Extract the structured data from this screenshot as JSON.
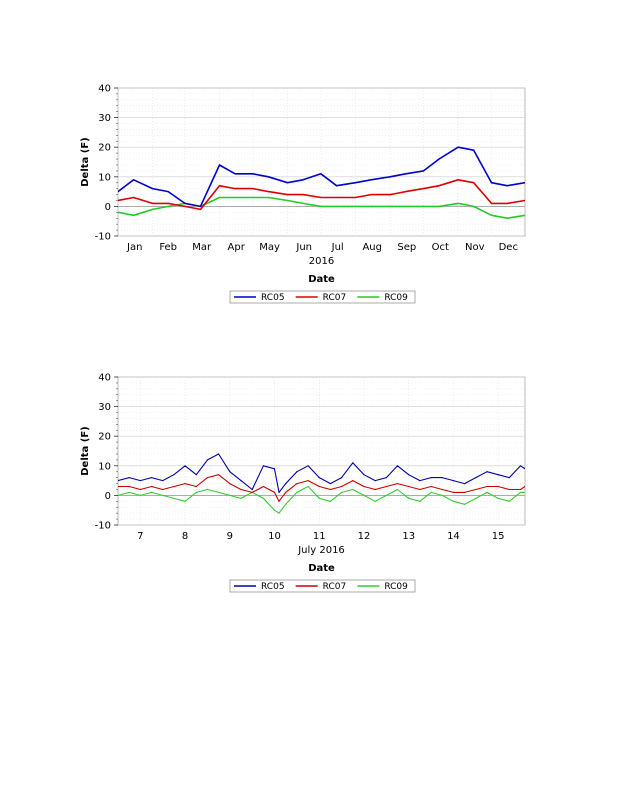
{
  "chart_data": [
    {
      "type": "line",
      "ylabel": "Delta (F)",
      "xlabel": "Date",
      "x_sublabel": "2016",
      "ylim": [
        -10,
        40
      ],
      "yticks": [
        "40",
        "30",
        "20",
        "10",
        "0",
        "-10"
      ],
      "xlim": [
        "2016-01-01",
        "2016-12-31"
      ],
      "xticks": [
        "Jan",
        "Feb",
        "Mar",
        "Apr",
        "May",
        "Jun",
        "Jul",
        "Aug",
        "Sep",
        "Oct",
        "Nov",
        "Dec"
      ],
      "grid": true,
      "legend_position": "bottom",
      "series": [
        {
          "name": "RC05",
          "color": "#0000cc",
          "x": [
            "2016-01-01",
            "2016-01-15",
            "2016-02-01",
            "2016-02-15",
            "2016-03-01",
            "2016-03-15",
            "2016-04-01",
            "2016-04-15",
            "2016-05-01",
            "2016-05-15",
            "2016-06-01",
            "2016-06-15",
            "2016-07-01",
            "2016-07-15",
            "2016-08-01",
            "2016-08-15",
            "2016-09-01",
            "2016-09-15",
            "2016-10-01",
            "2016-10-15",
            "2016-11-01",
            "2016-11-15",
            "2016-12-01",
            "2016-12-15",
            "2016-12-31"
          ],
          "y": [
            5,
            9,
            6,
            5,
            1,
            0,
            14,
            11,
            11,
            10,
            8,
            9,
            11,
            7,
            8,
            9,
            10,
            11,
            12,
            16,
            20,
            19,
            8,
            7,
            8
          ]
        },
        {
          "name": "RC07",
          "color": "#dd0000",
          "x": [
            "2016-01-01",
            "2016-01-15",
            "2016-02-01",
            "2016-02-15",
            "2016-03-01",
            "2016-03-15",
            "2016-04-01",
            "2016-04-15",
            "2016-05-01",
            "2016-05-15",
            "2016-06-01",
            "2016-06-15",
            "2016-07-01",
            "2016-07-15",
            "2016-08-01",
            "2016-08-15",
            "2016-09-01",
            "2016-09-15",
            "2016-10-01",
            "2016-10-15",
            "2016-11-01",
            "2016-11-15",
            "2016-12-01",
            "2016-12-15",
            "2016-12-31"
          ],
          "y": [
            2,
            3,
            1,
            1,
            0,
            -1,
            7,
            6,
            6,
            5,
            4,
            4,
            3,
            3,
            3,
            4,
            4,
            5,
            6,
            7,
            9,
            8,
            1,
            1,
            2
          ]
        },
        {
          "name": "RC09",
          "color": "#22cc22",
          "x": [
            "2016-01-01",
            "2016-01-15",
            "2016-02-01",
            "2016-02-15",
            "2016-03-01",
            "2016-03-15",
            "2016-04-01",
            "2016-04-15",
            "2016-05-01",
            "2016-05-15",
            "2016-06-01",
            "2016-06-15",
            "2016-07-01",
            "2016-07-15",
            "2016-08-01",
            "2016-08-15",
            "2016-09-01",
            "2016-09-15",
            "2016-10-01",
            "2016-10-15",
            "2016-11-01",
            "2016-11-15",
            "2016-12-01",
            "2016-12-15",
            "2016-12-31"
          ],
          "y": [
            -2,
            -3,
            -1,
            0,
            1,
            0,
            3,
            3,
            3,
            3,
            2,
            1,
            0,
            0,
            0,
            0,
            0,
            0,
            0,
            0,
            1,
            0,
            -3,
            -4,
            -3
          ]
        }
      ]
    },
    {
      "type": "line",
      "ylabel": "Delta (F)",
      "xlabel": "Date",
      "x_sublabel": "July 2016",
      "ylim": [
        -10,
        40
      ],
      "yticks": [
        "40",
        "30",
        "20",
        "10",
        "0",
        "-10"
      ],
      "xlim": [
        6.5,
        15.6
      ],
      "xticks": [
        "7",
        "8",
        "9",
        "10",
        "11",
        "12",
        "13",
        "14",
        "15"
      ],
      "grid": true,
      "legend_position": "bottom",
      "series": [
        {
          "name": "RC05",
          "color": "#0000aa",
          "x": [
            6.5,
            6.75,
            7.0,
            7.25,
            7.5,
            7.75,
            8.0,
            8.25,
            8.5,
            8.75,
            9.0,
            9.25,
            9.5,
            9.75,
            10.0,
            10.1,
            10.25,
            10.5,
            10.75,
            11.0,
            11.25,
            11.5,
            11.75,
            12.0,
            12.25,
            12.5,
            12.75,
            13.0,
            13.25,
            13.5,
            13.75,
            14.0,
            14.25,
            14.5,
            14.75,
            15.0,
            15.25,
            15.5,
            15.6
          ],
          "y": [
            5,
            6,
            5,
            6,
            5,
            7,
            10,
            7,
            12,
            14,
            8,
            5,
            2,
            10,
            9,
            1,
            4,
            8,
            10,
            6,
            4,
            6,
            11,
            7,
            5,
            6,
            10,
            7,
            5,
            6,
            6,
            5,
            4,
            6,
            8,
            7,
            6,
            10,
            9
          ]
        },
        {
          "name": "RC07",
          "color": "#cc0000",
          "x": [
            6.5,
            6.75,
            7.0,
            7.25,
            7.5,
            7.75,
            8.0,
            8.25,
            8.5,
            8.75,
            9.0,
            9.25,
            9.5,
            9.75,
            10.0,
            10.1,
            10.25,
            10.5,
            10.75,
            11.0,
            11.25,
            11.5,
            11.75,
            12.0,
            12.25,
            12.5,
            12.75,
            13.0,
            13.25,
            13.5,
            13.75,
            14.0,
            14.25,
            14.5,
            14.75,
            15.0,
            15.25,
            15.5,
            15.6
          ],
          "y": [
            3,
            3,
            2,
            3,
            2,
            3,
            4,
            3,
            6,
            7,
            4,
            2,
            1,
            3,
            1,
            -2,
            1,
            4,
            5,
            3,
            2,
            3,
            5,
            3,
            2,
            3,
            4,
            3,
            2,
            3,
            2,
            1,
            1,
            2,
            3,
            3,
            2,
            2,
            3
          ]
        },
        {
          "name": "RC09",
          "color": "#33cc33",
          "x": [
            6.5,
            6.75,
            7.0,
            7.25,
            7.5,
            7.75,
            8.0,
            8.25,
            8.5,
            8.75,
            9.0,
            9.25,
            9.5,
            9.75,
            10.0,
            10.1,
            10.25,
            10.5,
            10.75,
            11.0,
            11.25,
            11.5,
            11.75,
            12.0,
            12.25,
            12.5,
            12.75,
            13.0,
            13.25,
            13.5,
            13.75,
            14.0,
            14.25,
            14.5,
            14.75,
            15.0,
            15.25,
            15.5,
            15.6
          ],
          "y": [
            0,
            1,
            0,
            1,
            0,
            -1,
            -2,
            1,
            2,
            1,
            0,
            -1,
            1,
            -1,
            -5,
            -6,
            -3,
            1,
            3,
            -1,
            -2,
            1,
            2,
            0,
            -2,
            0,
            2,
            -1,
            -2,
            1,
            0,
            -2,
            -3,
            -1,
            1,
            -1,
            -2,
            1,
            1
          ]
        }
      ]
    }
  ]
}
